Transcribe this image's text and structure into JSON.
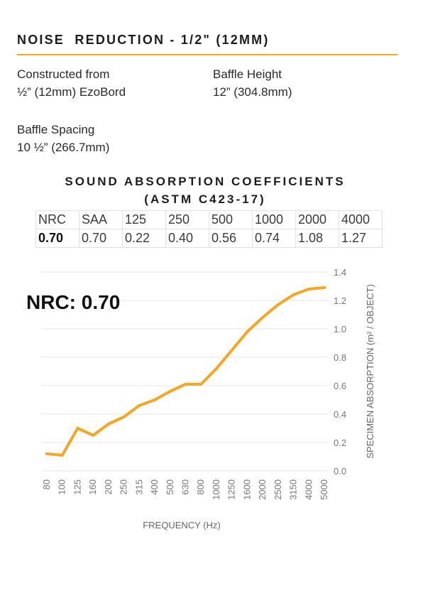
{
  "header": {
    "title": "NOISE  REDUCTION - 1/2\" (12MM)"
  },
  "specs": {
    "construction": {
      "label": "Constructed from",
      "value": "½” (12mm) EzoBord"
    },
    "height": {
      "label": "Baffle Height",
      "value": "12” (304.8mm)"
    },
    "spacing": {
      "label": "Baffle Spacing",
      "value": "10 ½” (266.7mm)"
    }
  },
  "coefficients": {
    "title_line1": "SOUND ABSORPTION COEFFICIENTS",
    "title_line2": "(ASTM C423-17)",
    "headers": [
      "NRC",
      "SAA",
      "125",
      "250",
      "500",
      "1000",
      "2000",
      "4000"
    ],
    "values": [
      "0.70",
      "0.70",
      "0.22",
      "0.40",
      "0.56",
      "0.74",
      "1.08",
      "1.27"
    ]
  },
  "nrc_badge": "NRC: 0.70",
  "colors": {
    "accent": "#f5a623",
    "grid": "#e6e6e6",
    "text": "#222222"
  },
  "chart_data": {
    "type": "line",
    "x": [
      "80",
      "100",
      "125",
      "160",
      "200",
      "250",
      "315",
      "400",
      "500",
      "630",
      "800",
      "1000",
      "1250",
      "1600",
      "2000",
      "2500",
      "3150",
      "4000",
      "5000"
    ],
    "series": [
      {
        "values": [
          0.12,
          0.11,
          0.3,
          0.25,
          0.33,
          0.38,
          0.46,
          0.5,
          0.56,
          0.61,
          0.61,
          0.72,
          0.85,
          0.98,
          1.08,
          1.17,
          1.24,
          1.28,
          1.29
        ]
      }
    ],
    "xlabel": "FREQUENCY (Hz)",
    "ylabel": "SPECIMEN ABSORPTION (m² / OBJECT)",
    "ylim": [
      0,
      1.4
    ],
    "yticks": [
      "0.0",
      "0.2",
      "0.4",
      "0.6",
      "0.8",
      "1.0",
      "1.2",
      "1.4"
    ],
    "grid": true,
    "y_axis_side": "right",
    "color": "#f5a623"
  }
}
